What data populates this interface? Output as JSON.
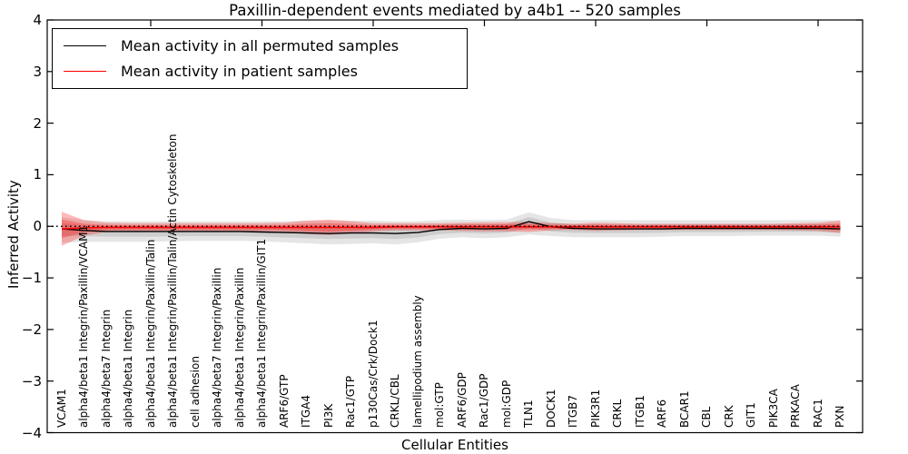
{
  "chart_data": {
    "type": "line",
    "title": "Paxillin-dependent events mediated by a4b1 -- 520 samples",
    "xlabel": "Cellular Entities",
    "ylabel": "Inferred Activity",
    "ylim": [
      -4,
      4
    ],
    "yticks": [
      4,
      3,
      2,
      1,
      0,
      -1,
      -2,
      -3,
      -4
    ],
    "ytick_labels": [
      "4",
      "3",
      "2",
      "1",
      "0",
      "−1",
      "−2",
      "−3",
      "−4"
    ],
    "grid": false,
    "legend_position": "upper left",
    "zero_reference_line": {
      "y": 0,
      "style": "dotted",
      "color": "#000000"
    },
    "top_axis_tick_indices": [
      4,
      9,
      14,
      19,
      24,
      29,
      34
    ],
    "categories": [
      "VCAM1",
      "alpha4/beta1 Integrin/Paxillin/VCAM1",
      "alpha4/beta7 Integrin",
      "alpha4/beta1 Integrin",
      "alpha4/beta1 Integrin/Paxillin/Talin",
      "alpha4/beta1 Integrin/Paxillin/Talin/Actin Cytoskeleton",
      "cell adhesion",
      "alpha4/beta7 Integrin/Paxillin",
      "alpha4/beta1 Integrin/Paxillin",
      "alpha4/beta1 Integrin/Paxillin/GIT1",
      "ARF6/GTP",
      "ITGA4",
      "PI3K",
      "Rac1/GTP",
      "p130Cas/Crk/Dock1",
      "CRKL/CBL",
      "lamellipodium assembly",
      "mol:GTP",
      "ARF6/GDP",
      "Rac1/GDP",
      "mol:GDP",
      "TLN1",
      "DOCK1",
      "ITGB7",
      "PIK3R1",
      "CRKL",
      "ITGB1",
      "ARF6",
      "BCAR1",
      "CBL",
      "CRK",
      "GIT1",
      "PIK3CA",
      "PRKACA",
      "RAC1",
      "PXN"
    ],
    "series": [
      {
        "name": "Mean activity in all permuted samples",
        "color": "#000000",
        "band_color": "rgba(0,0,0,0.10)",
        "values": [
          -0.05,
          -0.08,
          -0.1,
          -0.1,
          -0.1,
          -0.1,
          -0.1,
          -0.1,
          -0.1,
          -0.11,
          -0.12,
          -0.13,
          -0.14,
          -0.13,
          -0.13,
          -0.14,
          -0.12,
          -0.06,
          -0.04,
          -0.05,
          -0.04,
          0.09,
          -0.01,
          -0.04,
          -0.05,
          -0.05,
          -0.05,
          -0.05,
          -0.04,
          -0.04,
          -0.04,
          -0.04,
          -0.04,
          -0.04,
          -0.04,
          -0.05
        ],
        "band_upper": [
          0.18,
          0.12,
          0.1,
          0.1,
          0.1,
          0.1,
          0.1,
          0.1,
          0.1,
          0.1,
          0.1,
          0.11,
          0.11,
          0.11,
          0.11,
          0.1,
          0.1,
          0.12,
          0.13,
          0.12,
          0.13,
          0.27,
          0.16,
          0.12,
          0.12,
          0.12,
          0.12,
          0.12,
          0.12,
          0.12,
          0.12,
          0.12,
          0.12,
          0.12,
          0.12,
          0.12
        ],
        "band_lower": [
          -0.32,
          -0.3,
          -0.3,
          -0.3,
          -0.3,
          -0.29,
          -0.28,
          -0.28,
          -0.28,
          -0.29,
          -0.31,
          -0.33,
          -0.35,
          -0.34,
          -0.33,
          -0.35,
          -0.31,
          -0.24,
          -0.21,
          -0.23,
          -0.21,
          -0.16,
          -0.19,
          -0.21,
          -0.21,
          -0.21,
          -0.21,
          -0.2,
          -0.19,
          -0.19,
          -0.19,
          -0.18,
          -0.18,
          -0.18,
          -0.18,
          -0.2
        ]
      },
      {
        "name": "Mean activity in patient samples",
        "color": "#ff0000",
        "band_color": "rgba(255,0,0,0.27)",
        "values": [
          -0.05,
          -0.03,
          -0.02,
          -0.02,
          -0.02,
          -0.02,
          -0.02,
          -0.02,
          -0.02,
          -0.02,
          -0.02,
          -0.02,
          -0.02,
          -0.02,
          -0.02,
          -0.01,
          -0.01,
          -0.01,
          -0.01,
          -0.01,
          -0.01,
          -0.01,
          -0.01,
          -0.01,
          -0.01,
          -0.01,
          -0.01,
          -0.01,
          -0.01,
          -0.01,
          -0.01,
          -0.01,
          -0.01,
          -0.01,
          -0.01,
          -0.01
        ],
        "band_halfwidth": [
          0.33,
          0.15,
          0.09,
          0.08,
          0.08,
          0.08,
          0.08,
          0.08,
          0.08,
          0.08,
          0.09,
          0.13,
          0.15,
          0.12,
          0.08,
          0.07,
          0.07,
          0.07,
          0.08,
          0.09,
          0.09,
          0.1,
          0.07,
          0.06,
          0.08,
          0.07,
          0.06,
          0.06,
          0.06,
          0.06,
          0.06,
          0.06,
          0.06,
          0.07,
          0.08,
          0.12
        ]
      }
    ]
  },
  "legend": {
    "entries": [
      {
        "label": "Mean activity in all permuted samples",
        "color": "#000000"
      },
      {
        "label": "Mean activity in patient samples",
        "color": "#ff0000"
      }
    ]
  }
}
